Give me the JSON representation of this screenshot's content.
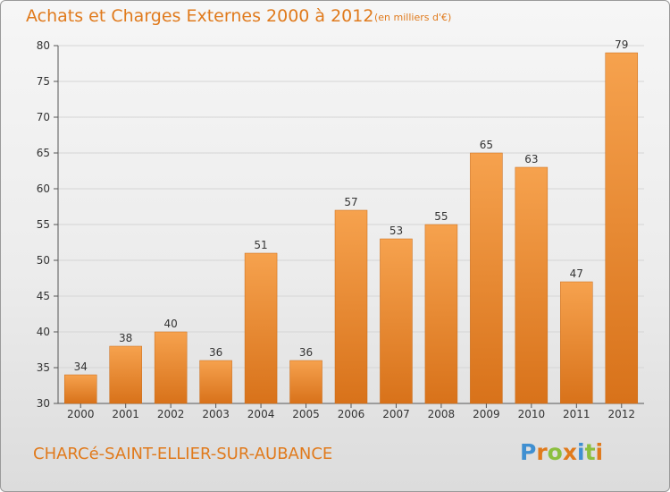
{
  "title": "Achats et Charges Externes 2000 à 2012",
  "subtitle": "(en milliers d'€)",
  "commune": "CHARCé-SAINT-ELLIER-SUR-AUBANCE",
  "logo": {
    "letters": [
      "P",
      "r",
      "o",
      "x",
      "i",
      "t",
      "i"
    ],
    "colors": [
      "#3f8fd1",
      "#e07a1c",
      "#8cbf3f",
      "#e07a1c",
      "#3f8fd1",
      "#8cbf3f",
      "#e07a1c"
    ]
  },
  "colors": {
    "bar_top": "#f6a24e",
    "bar_bottom": "#d8721a",
    "text_accent": "#e07a1c",
    "grid": "#d5d5d5",
    "axis": "#555555"
  },
  "chart_data": {
    "type": "bar",
    "categories": [
      "2000",
      "2001",
      "2002",
      "2003",
      "2004",
      "2005",
      "2006",
      "2007",
      "2008",
      "2009",
      "2010",
      "2011",
      "2012"
    ],
    "values": [
      34,
      38,
      40,
      36,
      51,
      36,
      57,
      53,
      55,
      65,
      63,
      47,
      79
    ],
    "ylim": [
      30,
      80
    ],
    "yticks": [
      30,
      35,
      40,
      45,
      50,
      55,
      60,
      65,
      70,
      75,
      80
    ],
    "grid": true,
    "data_labels": true
  }
}
